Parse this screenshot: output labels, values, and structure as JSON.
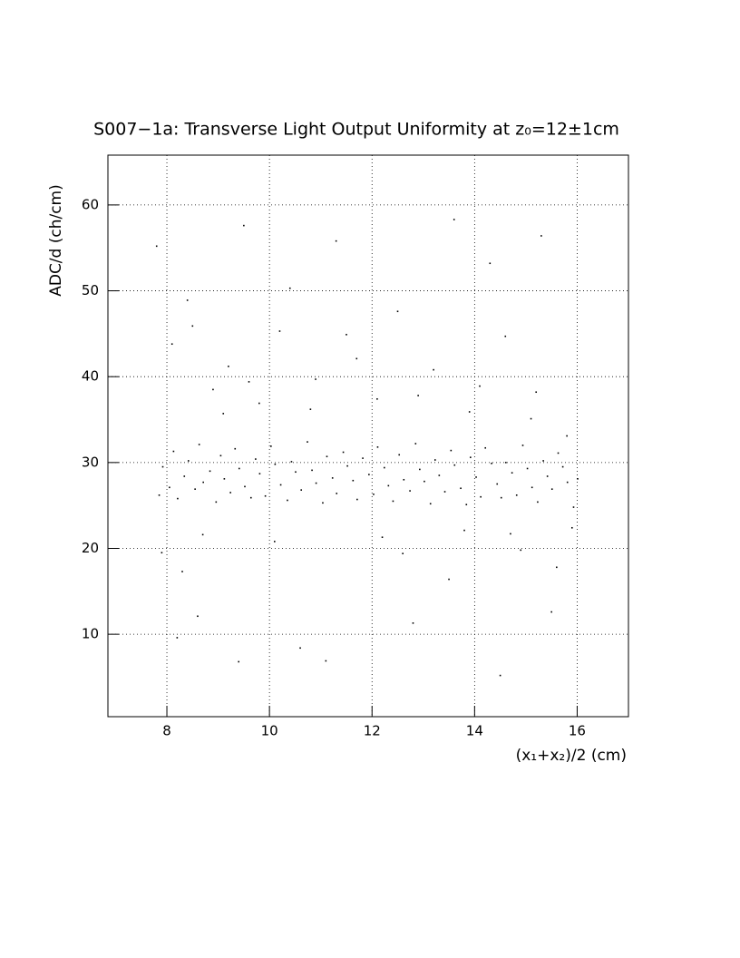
{
  "chart_data": {
    "type": "scatter",
    "title": "S007−1a: Transverse Light Output Uniformity at z₀=12±1cm",
    "xlabel": "(x₁+x₂)/2 (cm)",
    "ylabel": "ADC/d (ch/cm)",
    "color": "#000000",
    "grid": true,
    "xlim": [
      6.85,
      17.0
    ],
    "ylim": [
      0.4,
      65.8
    ],
    "xticks": [
      8,
      10,
      12,
      14,
      16
    ],
    "yticks": [
      10,
      20,
      30,
      40,
      50,
      60
    ],
    "x": [
      7.85,
      7.92,
      8.05,
      8.13,
      8.21,
      8.34,
      8.42,
      8.55,
      8.63,
      8.71,
      8.84,
      8.96,
      9.05,
      9.12,
      9.24,
      9.33,
      9.41,
      9.52,
      9.64,
      9.73,
      9.81,
      9.92,
      10.03,
      10.11,
      10.22,
      10.35,
      10.43,
      10.51,
      10.62,
      10.74,
      10.83,
      10.91,
      11.04,
      11.12,
      11.23,
      11.31,
      11.44,
      11.52,
      11.63,
      11.71,
      11.82,
      11.94,
      12.03,
      12.11,
      12.24,
      12.32,
      12.41,
      12.53,
      12.62,
      12.74,
      12.85,
      12.93,
      13.02,
      13.14,
      13.23,
      13.31,
      13.42,
      13.54,
      13.61,
      13.73,
      13.84,
      13.92,
      14.03,
      14.12,
      14.21,
      14.33,
      14.44,
      14.52,
      14.61,
      14.73,
      14.82,
      14.94,
      15.03,
      15.12,
      15.23,
      15.34,
      15.42,
      15.51,
      15.63,
      15.72,
      15.81,
      15.93,
      16.01,
      7.8,
      8.1,
      8.4,
      8.6,
      8.9,
      9.2,
      9.5,
      9.8,
      10.2,
      10.6,
      10.9,
      11.3,
      11.7,
      12.1,
      12.5,
      12.8,
      13.2,
      13.6,
      13.9,
      14.3,
      14.6,
      14.9,
      15.2,
      15.5,
      15.8,
      7.9,
      8.3,
      8.7,
      9.1,
      9.6,
      10.1,
      10.8,
      11.5,
      12.2,
      12.9,
      13.5,
      14.1,
      14.7,
      15.1,
      15.6,
      15.9,
      8.2,
      9.4,
      11.1,
      12.6,
      13.8,
      14.5,
      15.3,
      8.5,
      10.4
    ],
    "y": [
      26.2,
      29.5,
      27.1,
      31.3,
      25.8,
      28.4,
      30.2,
      26.9,
      32.1,
      27.7,
      29.0,
      25.4,
      30.8,
      28.1,
      26.5,
      31.6,
      29.3,
      27.2,
      25.9,
      30.4,
      28.7,
      26.1,
      31.9,
      29.8,
      27.4,
      25.6,
      30.1,
      28.9,
      26.8,
      32.4,
      29.1,
      27.6,
      25.3,
      30.7,
      28.2,
      26.4,
      31.2,
      29.6,
      27.9,
      25.7,
      30.5,
      28.6,
      26.3,
      31.8,
      29.4,
      27.3,
      25.5,
      30.9,
      28.0,
      26.7,
      32.2,
      29.2,
      27.8,
      25.2,
      30.3,
      28.5,
      26.6,
      31.4,
      29.7,
      27.0,
      25.1,
      30.6,
      28.3,
      26.0,
      31.7,
      29.9,
      27.5,
      25.9,
      30.0,
      28.8,
      26.2,
      32.0,
      29.3,
      27.1,
      25.4,
      30.2,
      28.4,
      26.9,
      31.1,
      29.5,
      27.7,
      24.8,
      28.1,
      55.2,
      43.8,
      48.9,
      12.1,
      38.5,
      41.2,
      57.6,
      36.9,
      45.3,
      8.4,
      39.7,
      55.8,
      42.1,
      37.4,
      47.6,
      11.3,
      40.8,
      58.3,
      35.9,
      53.2,
      44.7,
      19.8,
      38.2,
      12.6,
      33.1,
      19.5,
      17.3,
      21.6,
      35.7,
      39.4,
      20.8,
      36.2,
      44.9,
      21.3,
      37.8,
      16.4,
      38.9,
      21.7,
      35.1,
      17.8,
      22.4,
      9.6,
      6.8,
      6.9,
      19.4,
      22.1,
      5.2,
      56.4,
      45.9,
      50.3
    ]
  }
}
